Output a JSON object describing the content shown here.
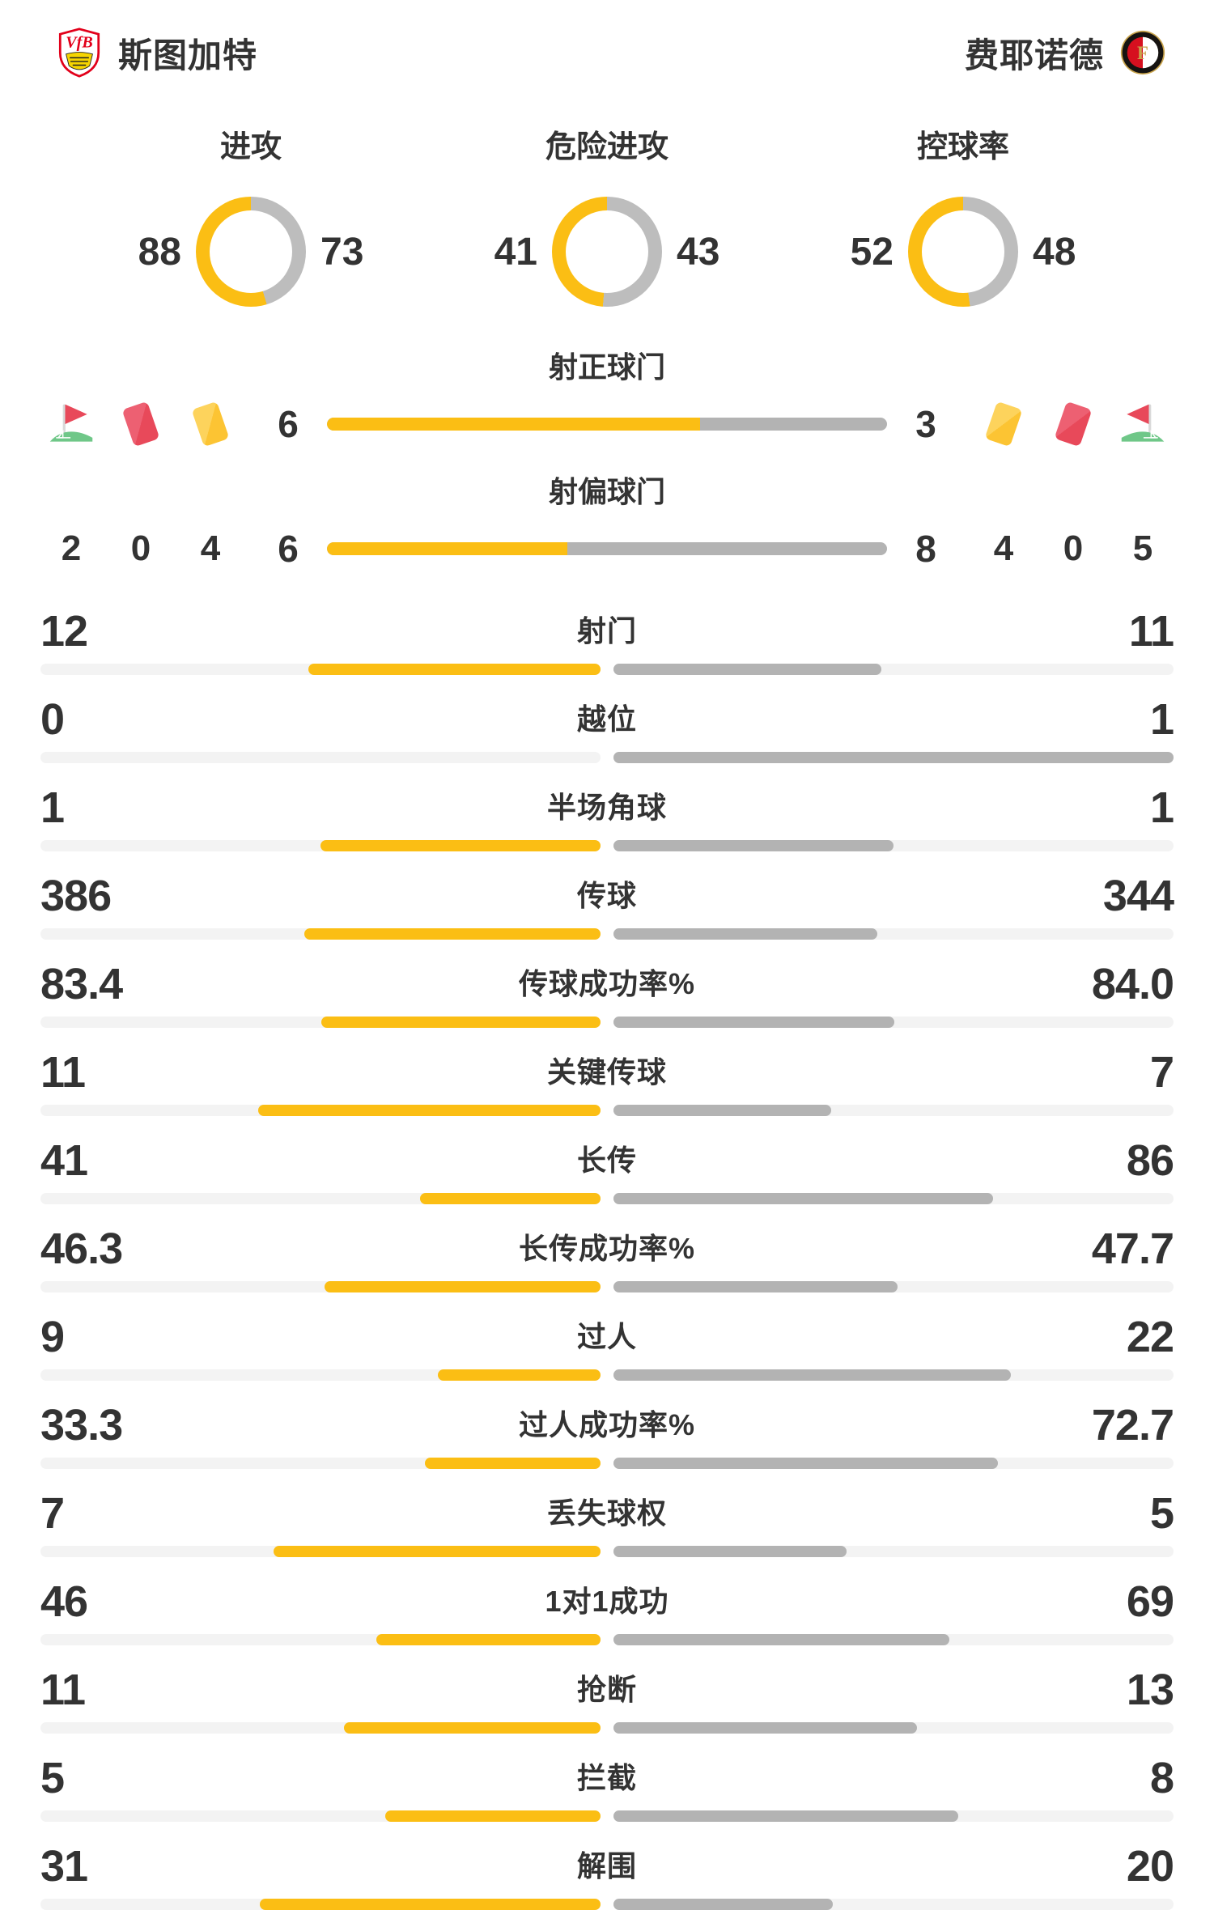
{
  "teams": {
    "home": {
      "name": "斯图加特",
      "logo_icon": "vfb-stuttgart-crest"
    },
    "away": {
      "name": "费耶诺德",
      "logo_icon": "feyenoord-crest"
    }
  },
  "colors": {
    "home_accent": "#fbbe14",
    "away_accent": "#b3b3b3",
    "donut_gray": "#bdbdbd",
    "track": "#f3f3f3",
    "text": "#333333",
    "card_red": "#e8495a",
    "card_red_light": "#ed6072",
    "card_yellow": "#fcc433",
    "card_yellow_light": "#fdd35c",
    "flag_green": "#6fc788",
    "flag_pole": "#d9d9d9"
  },
  "donuts": [
    {
      "label": "进攻",
      "home": "88",
      "away": "73"
    },
    {
      "label": "危险进攻",
      "home": "41",
      "away": "43"
    },
    {
      "label": "控球率",
      "home": "52",
      "away": "48"
    }
  ],
  "discipline": {
    "home": [
      {
        "icon": "corner-flag-icon",
        "value": "2"
      },
      {
        "icon": "red-card-icon",
        "value": "0"
      },
      {
        "icon": "yellow-card-icon",
        "value": "4"
      }
    ],
    "away": [
      {
        "icon": "yellow-card-icon",
        "value": "4"
      },
      {
        "icon": "red-card-icon",
        "value": "0"
      },
      {
        "icon": "corner-flag-icon",
        "value": "5"
      }
    ]
  },
  "shots_rows": [
    {
      "label": "射正球门",
      "home": "6",
      "away": "3",
      "flank": "icons"
    },
    {
      "label": "射偏球门",
      "home": "6",
      "away": "8",
      "flank": "numbers"
    }
  ],
  "stats": [
    {
      "label": "射门",
      "home": "12",
      "away": "11"
    },
    {
      "label": "越位",
      "home": "0",
      "away": "1"
    },
    {
      "label": "半场角球",
      "home": "1",
      "away": "1"
    },
    {
      "label": "传球",
      "home": "386",
      "away": "344"
    },
    {
      "label": "传球成功率%",
      "home": "83.4",
      "away": "84.0"
    },
    {
      "label": "关键传球",
      "home": "11",
      "away": "7"
    },
    {
      "label": "长传",
      "home": "41",
      "away": "86"
    },
    {
      "label": "长传成功率%",
      "home": "46.3",
      "away": "47.7"
    },
    {
      "label": "过人",
      "home": "9",
      "away": "22"
    },
    {
      "label": "过人成功率%",
      "home": "33.3",
      "away": "72.7"
    },
    {
      "label": "丢失球权",
      "home": "7",
      "away": "5"
    },
    {
      "label": "1对1成功",
      "home": "46",
      "away": "69"
    },
    {
      "label": "抢断",
      "home": "11",
      "away": "13"
    },
    {
      "label": "拦截",
      "home": "5",
      "away": "8"
    },
    {
      "label": "解围",
      "home": "31",
      "away": "20"
    }
  ],
  "chart_data": [
    {
      "type": "pie",
      "title": "进攻",
      "series": [
        {
          "name": "斯图加特",
          "value": 88
        },
        {
          "name": "费耶诺德",
          "value": 73
        }
      ]
    },
    {
      "type": "pie",
      "title": "危险进攻",
      "series": [
        {
          "name": "斯图加特",
          "value": 41
        },
        {
          "name": "费耶诺德",
          "value": 43
        }
      ]
    },
    {
      "type": "pie",
      "title": "控球率",
      "series": [
        {
          "name": "斯图加特",
          "value": 52
        },
        {
          "name": "费耶诺德",
          "value": 48
        }
      ]
    },
    {
      "type": "bar",
      "categories": [
        "角球",
        "红牌",
        "黄牌",
        "射正球门",
        "射偏球门",
        "射门",
        "越位",
        "半场角球",
        "传球",
        "传球成功率%",
        "关键传球",
        "长传",
        "长传成功率%",
        "过人",
        "过人成功率%",
        "丢失球权",
        "1对1成功",
        "抢断",
        "拦截",
        "解围"
      ],
      "series": [
        {
          "name": "斯图加特",
          "values": [
            2,
            0,
            4,
            6,
            6,
            12,
            0,
            1,
            386,
            83.4,
            11,
            41,
            46.3,
            9,
            33.3,
            7,
            46,
            11,
            5,
            31
          ]
        },
        {
          "name": "费耶诺德",
          "values": [
            5,
            0,
            4,
            3,
            8,
            11,
            1,
            1,
            344,
            84.0,
            7,
            86,
            47.7,
            22,
            72.7,
            5,
            69,
            13,
            8,
            20
          ]
        }
      ],
      "legend_position": "none",
      "grid": false
    }
  ]
}
